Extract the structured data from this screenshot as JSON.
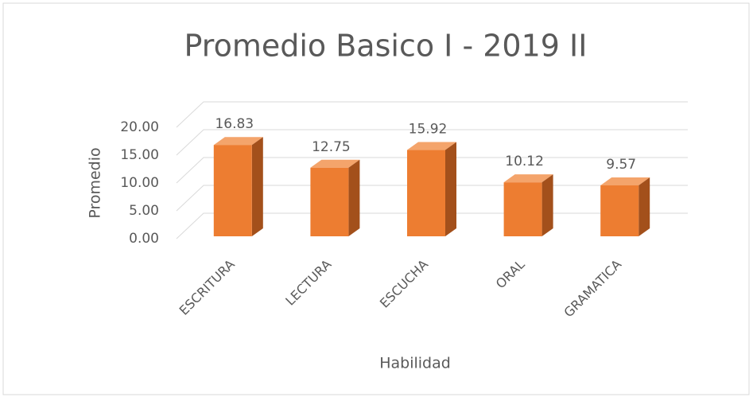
{
  "chart_data": {
    "type": "bar3d",
    "title": "Promedio Basico I - 2019 II",
    "x_label": "Habilidad",
    "y_label": "Promedio",
    "categories": [
      "ESCRITURA",
      "LECTURA",
      "ESCUCHA",
      "ORAL",
      "GRAMATICA"
    ],
    "values": [
      16.83,
      12.75,
      15.92,
      10.12,
      9.57
    ],
    "color": "#ed7d31",
    "ylim": [
      0,
      20
    ],
    "yticks": [
      {
        "value": 0,
        "label": "0.00"
      },
      {
        "value": 5,
        "label": "5.00"
      },
      {
        "value": 10,
        "label": "10.00"
      },
      {
        "value": 15,
        "label": "15.00"
      },
      {
        "value": 20,
        "label": "20.00"
      }
    ],
    "grid": true
  }
}
